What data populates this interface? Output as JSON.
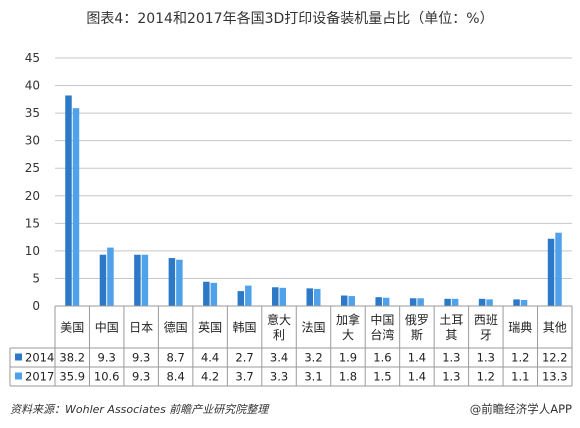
{
  "chart_data": {
    "type": "bar",
    "title": "图表4：2014和2017年各国3D打印设备装机量占比（单位：%）",
    "categories": [
      [
        "美国"
      ],
      [
        "中国"
      ],
      [
        "日本"
      ],
      [
        "德国"
      ],
      [
        "英国"
      ],
      [
        "韩国"
      ],
      [
        "意大",
        "利"
      ],
      [
        "法国"
      ],
      [
        "加拿",
        "大"
      ],
      [
        "中国",
        "台湾"
      ],
      [
        "俄罗",
        "斯"
      ],
      [
        "土耳",
        "其"
      ],
      [
        "西班",
        "牙"
      ],
      [
        "瑞典"
      ],
      [
        "其他"
      ]
    ],
    "series": [
      {
        "name": "2014",
        "color": "#2e78c8",
        "values": [
          38.2,
          9.3,
          9.3,
          8.7,
          4.4,
          2.7,
          3.4,
          3.2,
          1.9,
          1.6,
          1.4,
          1.3,
          1.3,
          1.2,
          12.2
        ],
        "labels": [
          "38.2",
          "9.3",
          "9.3",
          "8.7",
          "4.4",
          "2.7",
          "3.4",
          "3.2",
          "1.9",
          "1.6",
          "1.4",
          "1.3",
          "1.3",
          "1.2",
          "12.2"
        ]
      },
      {
        "name": "2017",
        "color": "#4fa2ea",
        "values": [
          35.9,
          10.6,
          9.3,
          8.4,
          4.2,
          3.7,
          3.3,
          3.1,
          1.8,
          1.5,
          1.4,
          1.3,
          1.2,
          1.1,
          13.3
        ],
        "labels": [
          "35.9",
          "10.6",
          "9.3",
          "8.4",
          "4.2",
          "3.7",
          "3.3",
          "3.1",
          "1.8",
          "1.5",
          "1.4",
          "1.3",
          "1.2",
          "1.1",
          "13.3"
        ]
      }
    ],
    "ylim": [
      0,
      45
    ],
    "yticks": [
      "0",
      "5",
      "10",
      "15",
      "20",
      "25",
      "30",
      "35",
      "40",
      "45"
    ],
    "grid": true,
    "legend": "data-table-left"
  },
  "footer": {
    "source": "资料来源：Wohler Associates 前瞻产业研究院整理",
    "brand": "@前瞻经济学人APP"
  }
}
